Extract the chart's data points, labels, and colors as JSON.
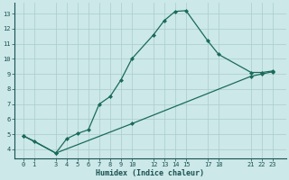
{
  "xlabel": "Humidex (Indice chaleur)",
  "bg_color": "#cce8e8",
  "grid_color": "#aacccc",
  "line_color": "#1a6b5a",
  "line1_x": [
    0,
    1,
    3,
    4,
    5,
    6,
    7,
    8,
    9,
    10,
    12,
    13,
    14,
    15,
    17,
    18,
    21,
    22,
    23
  ],
  "line1_y": [
    4.9,
    4.55,
    3.75,
    4.7,
    5.05,
    5.3,
    7.0,
    7.5,
    8.6,
    10.0,
    11.6,
    12.55,
    13.15,
    13.2,
    11.2,
    10.3,
    9.1,
    9.1,
    9.2
  ],
  "line2_x": [
    0,
    3,
    10,
    21,
    22,
    23
  ],
  "line2_y": [
    4.9,
    3.75,
    5.7,
    8.85,
    9.0,
    9.15
  ],
  "xticks": [
    0,
    1,
    3,
    4,
    5,
    6,
    7,
    8,
    9,
    10,
    12,
    13,
    14,
    15,
    17,
    18,
    21,
    22,
    23
  ],
  "yticks": [
    4,
    5,
    6,
    7,
    8,
    9,
    10,
    11,
    12,
    13
  ],
  "xlim": [
    -0.8,
    24.2
  ],
  "ylim": [
    3.4,
    13.7
  ]
}
